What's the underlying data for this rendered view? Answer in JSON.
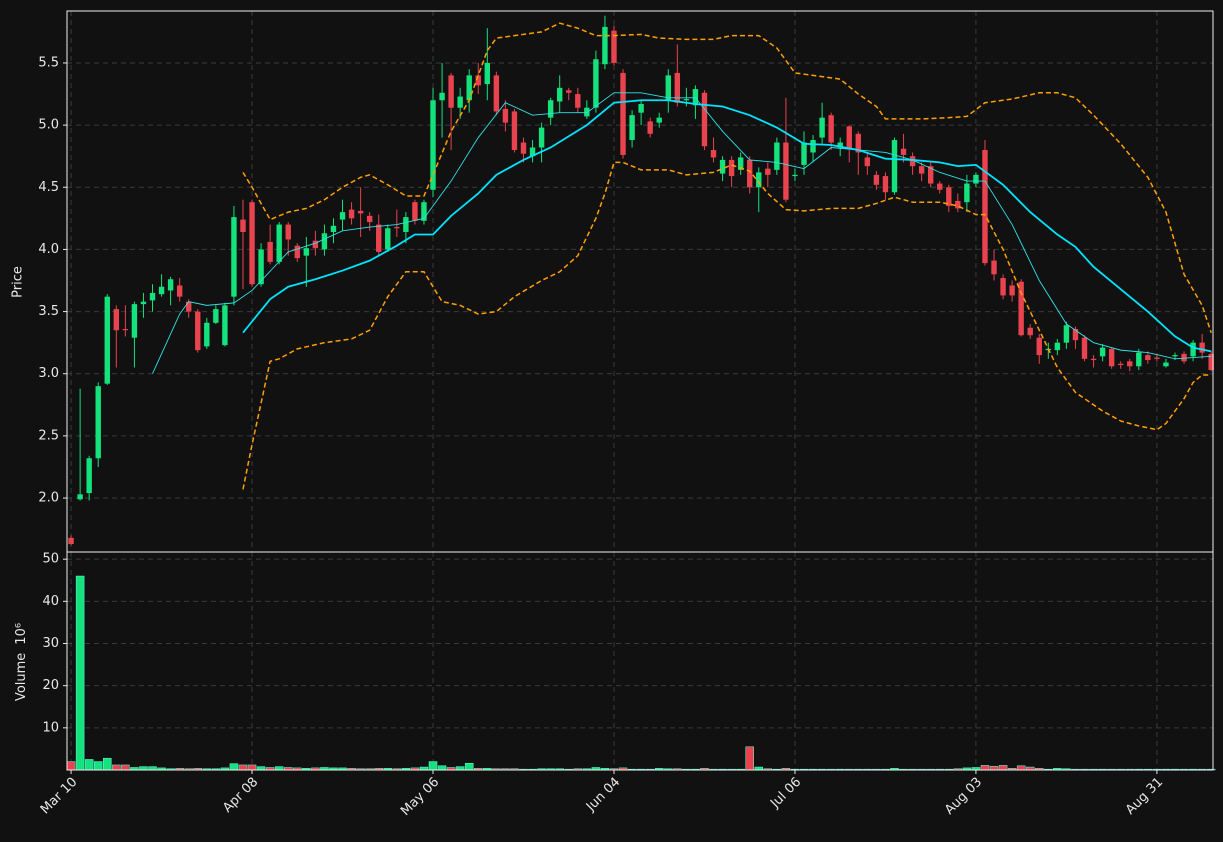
{
  "chart_data": [
    {
      "type": "candlestick",
      "ylabel": "Price",
      "up_color": "#14e37d",
      "down_color": "#e9434f",
      "xlim": [
        -0.45,
        126.2
      ],
      "ylim": [
        1.566,
        5.918
      ],
      "grid": true,
      "yticks": [
        {
          "value": 2,
          "label": "2.0"
        },
        2.5,
        {
          "value": 3,
          "label": "3.0"
        },
        3.5,
        {
          "value": 4,
          "label": "4.0"
        },
        4.5,
        {
          "value": 5,
          "label": "5.0"
        },
        5.5
      ],
      "open": [
        1.68,
        1.99,
        2.04,
        2.32,
        2.92,
        3.52,
        3.36,
        3.29,
        3.56,
        3.59,
        3.64,
        3.67,
        3.71,
        3.58,
        3.5,
        3.22,
        3.41,
        3.23,
        3.62,
        4.24,
        4.38,
        3.72,
        4.06,
        3.9,
        4.2,
        4.03,
        3.95,
        4.07,
        4.0,
        4.14,
        4.24,
        4.32,
        4.31,
        4.27,
        4.2,
        4.0,
        4.18,
        4.14,
        4.38,
        4.23,
        4.48,
        5.2,
        5.4,
        5.14,
        5.2,
        5.4,
        5.33,
        5.4,
        5.13,
        5.11,
        4.86,
        4.75,
        4.82,
        5.06,
        5.19,
        5.28,
        5.25,
        5.07,
        5.14,
        5.49,
        5.76,
        5.42,
        4.88,
        5.1,
        5.03,
        5.02,
        5.2,
        5.42,
        5.2,
        5.16,
        5.26,
        4.8,
        4.61,
        4.72,
        4.64,
        4.72,
        4.5,
        4.65,
        4.64,
        4.86,
        4.59,
        4.68,
        4.78,
        4.9,
        5.08,
        4.82,
        4.99,
        4.93,
        4.74,
        4.6,
        4.59,
        4.46,
        4.81,
        4.75,
        4.67,
        4.67,
        4.53,
        4.5,
        4.39,
        4.38,
        4.53,
        4.8,
        3.91,
        3.77,
        3.71,
        3.74,
        3.37,
        3.29,
        3.19,
        3.19,
        3.25,
        3.36,
        3.29,
        3.12,
        3.14,
        3.2,
        3.08,
        3.1,
        3.06,
        3.15,
        3.13,
        3.06,
        3.14,
        3.16,
        3.14,
        3.25,
        3.16
      ],
      "high": [
        1.7,
        2.88,
        2.34,
        2.93,
        3.64,
        3.55,
        3.55,
        3.58,
        3.65,
        3.72,
        3.8,
        3.78,
        3.77,
        3.6,
        3.52,
        3.45,
        3.55,
        3.57,
        4.35,
        4.4,
        4.4,
        4.05,
        4.2,
        4.22,
        4.22,
        4.05,
        4.1,
        4.15,
        4.2,
        4.25,
        4.4,
        4.38,
        4.5,
        4.3,
        4.28,
        4.2,
        4.32,
        4.3,
        4.4,
        4.4,
        5.3,
        5.5,
        5.42,
        5.3,
        5.45,
        5.5,
        5.78,
        5.43,
        5.2,
        5.13,
        4.9,
        4.88,
        5.02,
        5.22,
        5.4,
        5.3,
        5.3,
        5.2,
        5.6,
        5.88,
        5.8,
        5.45,
        5.12,
        5.2,
        5.06,
        5.1,
        5.45,
        5.65,
        5.3,
        5.32,
        5.28,
        4.9,
        4.75,
        4.75,
        4.78,
        4.75,
        4.66,
        4.7,
        4.9,
        5.22,
        4.65,
        4.95,
        4.92,
        5.18,
        5.1,
        4.9,
        5.0,
        4.95,
        4.78,
        4.63,
        4.62,
        4.9,
        4.93,
        4.78,
        4.7,
        4.7,
        4.55,
        4.52,
        4.45,
        4.6,
        4.62,
        4.88,
        4.0,
        3.8,
        3.75,
        3.76,
        3.4,
        3.32,
        3.25,
        3.28,
        3.42,
        3.38,
        3.31,
        3.15,
        3.24,
        3.21,
        3.1,
        3.12,
        3.2,
        3.18,
        3.16,
        3.12,
        3.17,
        3.18,
        3.27,
        3.32,
        3.18
      ],
      "low": [
        1.62,
        1.98,
        1.98,
        2.25,
        2.91,
        3.05,
        3.3,
        3.05,
        3.45,
        3.5,
        3.62,
        3.55,
        3.58,
        3.45,
        3.17,
        3.2,
        3.4,
        3.22,
        3.55,
        3.68,
        3.7,
        3.7,
        3.88,
        3.88,
        3.95,
        3.9,
        3.7,
        3.95,
        3.95,
        4.05,
        4.15,
        4.2,
        4.1,
        4.15,
        3.95,
        3.98,
        4.1,
        4.05,
        4.2,
        4.2,
        4.42,
        4.9,
        4.8,
        5.05,
        5.1,
        5.25,
        5.2,
        5.08,
        4.95,
        4.78,
        4.7,
        4.7,
        4.7,
        5.0,
        5.1,
        5.2,
        5.1,
        5.05,
        5.1,
        5.45,
        5.48,
        4.73,
        4.82,
        5.0,
        4.9,
        4.98,
        5.1,
        5.15,
        5.15,
        5.05,
        4.8,
        4.7,
        4.55,
        4.5,
        4.6,
        4.45,
        4.3,
        4.5,
        4.6,
        4.38,
        4.55,
        4.6,
        4.7,
        4.85,
        4.8,
        4.75,
        4.7,
        4.6,
        4.6,
        4.48,
        4.4,
        4.44,
        4.7,
        4.6,
        4.55,
        4.5,
        4.45,
        4.3,
        4.3,
        4.3,
        4.5,
        3.87,
        3.75,
        3.6,
        3.58,
        3.3,
        3.28,
        3.08,
        3.12,
        3.15,
        3.2,
        3.2,
        3.1,
        3.05,
        3.1,
        3.04,
        3.04,
        3.02,
        3.03,
        3.08,
        3.1,
        3.05,
        3.11,
        3.08,
        3.1,
        3.12,
        3.02
      ],
      "close": [
        1.63,
        2.03,
        2.32,
        2.9,
        3.62,
        3.35,
        3.35,
        3.56,
        3.58,
        3.65,
        3.7,
        3.76,
        3.62,
        3.5,
        3.19,
        3.41,
        3.52,
        3.55,
        4.26,
        4.14,
        3.72,
        4.0,
        3.9,
        4.2,
        4.08,
        3.93,
        4.01,
        4.01,
        4.13,
        4.19,
        4.3,
        4.25,
        4.29,
        4.22,
        3.98,
        4.17,
        4.17,
        4.26,
        4.23,
        4.38,
        5.2,
        5.26,
        5.14,
        5.23,
        5.4,
        5.32,
        5.5,
        5.11,
        5.02,
        4.8,
        4.77,
        4.82,
        4.98,
        5.2,
        5.3,
        5.26,
        5.14,
        5.14,
        5.53,
        5.79,
        5.5,
        4.76,
        5.08,
        5.17,
        4.93,
        5.06,
        5.4,
        5.18,
        5.21,
        5.29,
        4.83,
        4.74,
        4.72,
        4.59,
        4.74,
        4.5,
        4.62,
        4.6,
        4.86,
        4.4,
        4.6,
        4.86,
        4.88,
        5.06,
        4.86,
        4.86,
        4.81,
        4.78,
        4.67,
        4.52,
        4.46,
        4.88,
        4.76,
        4.67,
        4.61,
        4.53,
        4.48,
        4.35,
        4.33,
        4.53,
        4.6,
        3.89,
        3.8,
        3.63,
        3.63,
        3.31,
        3.31,
        3.15,
        3.2,
        3.25,
        3.39,
        3.27,
        3.12,
        3.11,
        3.21,
        3.06,
        3.07,
        3.06,
        3.17,
        3.11,
        3.12,
        3.09,
        3.15,
        3.1,
        3.25,
        3.17,
        3.03
      ],
      "series": [
        {
          "color": "#2fe3e8",
          "width": 0.9,
          "x": [
            9,
            12,
            13,
            15,
            18,
            20,
            24,
            27,
            30,
            33,
            36,
            39,
            42,
            45,
            48,
            51,
            54,
            57,
            60,
            63,
            66,
            69,
            72,
            75,
            78,
            81,
            84,
            87,
            90,
            93,
            96,
            99,
            101,
            104,
            107,
            110,
            113,
            116,
            119,
            122,
            126
          ],
          "values": [
            3.0,
            3.48,
            3.58,
            3.55,
            3.57,
            3.67,
            3.98,
            4.05,
            4.15,
            4.18,
            4.2,
            4.25,
            4.55,
            4.9,
            5.18,
            5.08,
            5.1,
            5.1,
            5.26,
            5.26,
            5.22,
            5.22,
            4.95,
            4.72,
            4.7,
            4.65,
            4.82,
            4.8,
            4.78,
            4.72,
            4.62,
            4.55,
            4.55,
            4.2,
            3.75,
            3.4,
            3.25,
            3.19,
            3.17,
            3.12,
            3.14
          ]
        },
        {
          "color": "#00e5ff",
          "width": 1.8,
          "x": [
            19,
            22,
            24,
            27,
            30,
            33,
            36,
            38,
            40,
            42,
            45,
            47,
            50,
            53,
            57,
            60,
            63,
            66,
            69,
            72,
            75,
            78,
            81,
            84,
            87,
            90,
            93,
            96,
            98,
            100,
            103,
            106,
            109,
            111,
            113,
            116,
            119,
            122,
            124,
            126
          ],
          "values": [
            3.33,
            3.6,
            3.7,
            3.76,
            3.83,
            3.91,
            4.03,
            4.12,
            4.12,
            4.27,
            4.45,
            4.6,
            4.72,
            4.82,
            5.0,
            5.18,
            5.2,
            5.2,
            5.17,
            5.15,
            5.08,
            4.98,
            4.85,
            4.84,
            4.8,
            4.73,
            4.72,
            4.7,
            4.67,
            4.68,
            4.52,
            4.3,
            4.12,
            4.02,
            3.86,
            3.68,
            3.5,
            3.3,
            3.21,
            3.18
          ]
        },
        {
          "color": "#ffa000",
          "width": 1.5,
          "dashed": true,
          "x": [
            19,
            20,
            22,
            24,
            26,
            28,
            30,
            32,
            33,
            35,
            37,
            39,
            40,
            42,
            44,
            46,
            47,
            49,
            52,
            54,
            56,
            58,
            60,
            63,
            65,
            68,
            71,
            73,
            76,
            78,
            80,
            82,
            85,
            87,
            89,
            90,
            92,
            94,
            97,
            99,
            101,
            104,
            107,
            109,
            111,
            113,
            116,
            119,
            121,
            123,
            125,
            126
          ],
          "values": [
            4.62,
            4.5,
            4.24,
            4.3,
            4.33,
            4.4,
            4.5,
            4.58,
            4.6,
            4.52,
            4.43,
            4.43,
            4.6,
            4.95,
            5.2,
            5.6,
            5.7,
            5.72,
            5.75,
            5.82,
            5.78,
            5.72,
            5.72,
            5.73,
            5.7,
            5.69,
            5.69,
            5.72,
            5.72,
            5.62,
            5.42,
            5.4,
            5.37,
            5.25,
            5.15,
            5.05,
            5.05,
            5.05,
            5.06,
            5.07,
            5.18,
            5.21,
            5.26,
            5.26,
            5.22,
            5.08,
            4.85,
            4.58,
            4.3,
            3.8,
            3.55,
            3.33
          ]
        },
        {
          "color": "#ffa000",
          "width": 1.5,
          "dashed": true,
          "x": [
            19,
            20,
            22,
            23,
            25,
            28,
            31,
            33,
            35,
            37,
            39,
            41,
            43,
            45,
            47,
            49,
            52,
            54,
            56,
            58,
            59,
            60,
            61,
            63,
            66,
            68,
            71,
            73,
            75,
            77,
            79,
            81,
            84,
            87,
            89,
            91,
            93,
            96,
            98,
            100,
            101,
            103,
            105,
            107,
            109,
            111,
            114,
            116,
            118,
            120,
            121,
            123,
            124,
            125,
            126
          ],
          "values": [
            2.07,
            2.43,
            3.1,
            3.12,
            3.2,
            3.25,
            3.28,
            3.35,
            3.62,
            3.82,
            3.82,
            3.58,
            3.55,
            3.48,
            3.5,
            3.62,
            3.75,
            3.82,
            3.95,
            4.25,
            4.45,
            4.7,
            4.7,
            4.64,
            4.64,
            4.6,
            4.62,
            4.68,
            4.63,
            4.45,
            4.32,
            4.31,
            4.33,
            4.33,
            4.37,
            4.42,
            4.38,
            4.38,
            4.35,
            4.28,
            4.28,
            4.0,
            3.65,
            3.35,
            3.05,
            2.85,
            2.7,
            2.62,
            2.58,
            2.55,
            2.6,
            2.8,
            2.93,
            2.99,
            2.99
          ]
        }
      ]
    },
    {
      "type": "bar",
      "ylabel": "Volume",
      "ylabel_scale": "10⁶",
      "xlim": [
        -0.45,
        126.2
      ],
      "ylim": [
        0,
        51.7
      ],
      "grid": true,
      "yticks": [
        10,
        20,
        30,
        40,
        50
      ],
      "xticks": [
        {
          "value": 0,
          "label": "Mar 10"
        },
        {
          "value": 20,
          "label": "Apr 08"
        },
        {
          "value": 40,
          "label": "May 06"
        },
        {
          "value": 60,
          "label": "Jun 04"
        },
        {
          "value": 80,
          "label": "Jul 06"
        },
        {
          "value": 100,
          "label": "Aug 03"
        },
        {
          "value": 120,
          "label": "Aug 31"
        }
      ],
      "values": [
        2,
        46,
        2.5,
        2,
        2.8,
        1.2,
        1.2,
        0.6,
        0.8,
        0.8,
        0.5,
        0.3,
        0.4,
        0.3,
        0.4,
        0.3,
        0.3,
        0.5,
        1.5,
        1.2,
        1.2,
        0.8,
        0.6,
        0.8,
        0.6,
        0.5,
        0.4,
        0.5,
        0.6,
        0.5,
        0.5,
        0.4,
        0.3,
        0.3,
        0.4,
        0.4,
        0.3,
        0.4,
        0.5,
        0.7,
        2.0,
        1.0,
        0.6,
        0.8,
        1.6,
        0.4,
        0.4,
        0.3,
        0.3,
        0.3,
        0.2,
        0.2,
        0.3,
        0.3,
        0.3,
        0.2,
        0.3,
        0.3,
        0.6,
        0.4,
        0.3,
        0.5,
        0.2,
        0.2,
        0.2,
        0.4,
        0.3,
        0.3,
        0.2,
        0.2,
        0.4,
        0.2,
        0.2,
        0.2,
        0.2,
        5.5,
        0.7,
        0.3,
        0.2,
        0.4,
        0.2,
        0.2,
        0.2,
        0.2,
        0.2,
        0.2,
        0.2,
        0.2,
        0.2,
        0.2,
        0.2,
        0.4,
        0.2,
        0.2,
        0.2,
        0.2,
        0.2,
        0.2,
        0.3,
        0.5,
        0.6,
        1.1,
        0.9,
        1.1,
        0.4,
        1.0,
        0.7,
        0.4,
        0.2,
        0.4,
        0.3,
        0.2,
        0.2,
        0.2,
        0.2,
        0.2,
        0.2,
        0.2,
        0.2,
        0.2,
        0.2,
        0.2,
        0.2,
        0.2,
        0.2,
        0.2,
        0.2
      ]
    }
  ]
}
